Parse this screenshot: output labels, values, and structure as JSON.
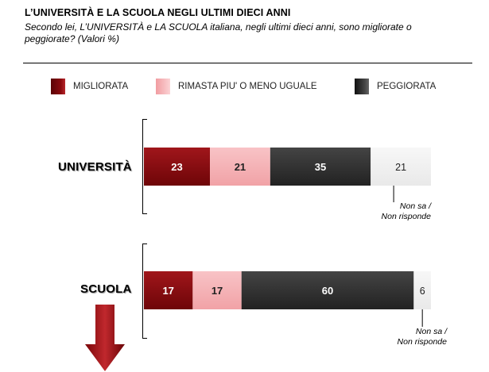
{
  "title": "L’UNIVERSITÀ E LA SCUOLA NEGLI ULTIMI DIECI ANNI",
  "subtitle": "Secondo lei, L’UNIVERSITÀ e LA SCUOLA italiana, negli ultimi dieci anni, sono migliorate o peggiorate? (Valori %)",
  "colors": {
    "migliorata": "#8b0a0f",
    "rimasta": "#f6b5b8",
    "peggiorata": "#333333",
    "nonsa": "#f2f2f2"
  },
  "legend": [
    {
      "label": "MIGLIORATA",
      "color_key": "migliorata"
    },
    {
      "label": "RIMASTA PIU' O MENO UGUALE",
      "color_key": "rimasta"
    },
    {
      "label": "PEGGIORATA",
      "color_key": "peggiorata"
    }
  ],
  "non_sa_note": {
    "line1": "Non sa /",
    "line2": "Non risponde"
  },
  "chart_data": {
    "type": "bar",
    "orientation": "horizontal",
    "stacked": true,
    "unit": "%",
    "title": "L’UNIVERSITÀ E LA SCUOLA NEGLI ULTIMI DIECI ANNI",
    "categories": [
      "UNIVERSITÀ",
      "SCUOLA"
    ],
    "series": [
      {
        "name": "MIGLIORATA",
        "values": [
          23,
          17
        ]
      },
      {
        "name": "RIMASTA PIU' O MENO UGUALE",
        "values": [
          21,
          17
        ]
      },
      {
        "name": "PEGGIORATA",
        "values": [
          35,
          60
        ]
      },
      {
        "name": "Non sa / Non risponde",
        "values": [
          21,
          6
        ]
      }
    ],
    "xlim": [
      0,
      100
    ],
    "legend_position": "top",
    "grid": false
  }
}
